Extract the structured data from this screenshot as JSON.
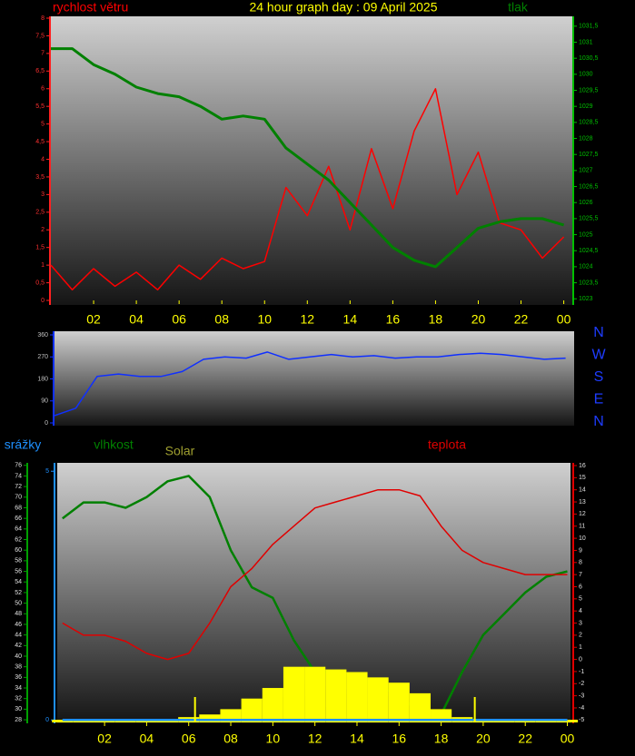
{
  "chart_data": [
    {
      "type": "line",
      "title": "24 hour graph day : 09 April 2025",
      "x": [
        0,
        1,
        2,
        3,
        4,
        5,
        6,
        7,
        8,
        9,
        10,
        11,
        12,
        13,
        14,
        15,
        16,
        17,
        18,
        19,
        20,
        21,
        22,
        23,
        24
      ],
      "xlim": [
        0,
        24.4
      ],
      "xticks": [
        {
          "value": 2,
          "label": "02"
        },
        {
          "value": 4,
          "label": "04"
        },
        {
          "value": 6,
          "label": "06"
        },
        {
          "value": 8,
          "label": "08"
        },
        10,
        12,
        14,
        16,
        18,
        20,
        22,
        {
          "value": 24,
          "label": "00"
        }
      ],
      "ylim": [
        0,
        8
      ],
      "yticks": [
        0,
        {
          "value": 0.5,
          "label": "0,5"
        },
        1,
        {
          "value": 1.5,
          "label": "1,5"
        },
        2,
        {
          "value": 2.5,
          "label": "2,5"
        },
        3,
        {
          "value": 3.5,
          "label": "3,5"
        },
        4,
        {
          "value": 4.5,
          "label": "4,5"
        },
        5,
        {
          "value": 5.5,
          "label": "5,5"
        },
        6,
        {
          "value": 6.5,
          "label": "6,5"
        },
        7,
        {
          "value": 7.5,
          "label": "7,5"
        },
        8
      ],
      "y2lim": [
        1022.95,
        1031.75
      ],
      "y2ticks": [
        1023,
        {
          "value": 1023.5,
          "label": "1023,5"
        },
        1024,
        {
          "value": 1024.5,
          "label": "1024,5"
        },
        1025,
        {
          "value": 1025.5,
          "label": "1025,5"
        },
        1026,
        {
          "value": 1026.5,
          "label": "1026,5"
        },
        1027,
        {
          "value": 1027.5,
          "label": "1027,5"
        },
        1028,
        {
          "value": 1028.5,
          "label": "1028,5"
        },
        1029,
        {
          "value": 1029.5,
          "label": "1029,5"
        },
        1030,
        {
          "value": 1030.5,
          "label": "1030,5"
        },
        1031,
        {
          "value": 1031.5,
          "label": "1031,5"
        }
      ],
      "series": [
        {
          "name": "rychlost větru",
          "color": "#ff0000",
          "values": [
            1.0,
            0.3,
            0.9,
            0.4,
            0.8,
            0.3,
            1.0,
            0.6,
            1.2,
            0.9,
            1.1,
            3.2,
            2.4,
            3.8,
            2.0,
            4.3,
            2.6,
            4.8,
            6.0,
            3.0,
            4.2,
            2.2,
            2.0,
            1.2,
            1.8
          ]
        },
        {
          "name": "tlak",
          "color": "#008000",
          "axis": "y2",
          "values": [
            1030.8,
            1030.8,
            1030.3,
            1030.0,
            1029.6,
            1029.4,
            1029.3,
            1029.0,
            1028.6,
            1028.7,
            1028.6,
            1027.7,
            1027.2,
            1026.7,
            1026.0,
            1025.3,
            1024.6,
            1024.2,
            1024.0,
            1024.6,
            1025.2,
            1025.4,
            1025.5,
            1025.5,
            1025.3
          ]
        }
      ]
    },
    {
      "type": "line",
      "x": [
        0,
        1,
        2,
        3,
        4,
        5,
        6,
        7,
        8,
        9,
        10,
        11,
        12,
        13,
        14,
        15,
        16,
        17,
        18,
        19,
        20,
        21,
        22,
        23,
        24
      ],
      "xlim": [
        0,
        24.4
      ],
      "ylim": [
        0,
        360
      ],
      "yticks": [
        0,
        90,
        180,
        270,
        360
      ],
      "compass": [
        "N",
        "W",
        "S",
        "E",
        "N"
      ],
      "series": [
        {
          "color": "#1030ff",
          "values": [
            30,
            60,
            190,
            200,
            190,
            190,
            210,
            260,
            270,
            265,
            290,
            260,
            270,
            280,
            270,
            275,
            265,
            270,
            270,
            280,
            285,
            280,
            270,
            260,
            265
          ]
        }
      ]
    },
    {
      "type": "line",
      "x": [
        0,
        1,
        2,
        3,
        4,
        5,
        6,
        7,
        8,
        9,
        10,
        11,
        12,
        13,
        14,
        15,
        16,
        17,
        18,
        19,
        20,
        21,
        22,
        23,
        24
      ],
      "xlim": [
        -0.25,
        24.15
      ],
      "xticks": [
        {
          "value": 2,
          "label": "02"
        },
        {
          "value": 4,
          "label": "04"
        },
        {
          "value": 6,
          "label": "06"
        },
        {
          "value": 8,
          "label": "08"
        },
        10,
        12,
        14,
        16,
        18,
        20,
        22,
        {
          "value": 24,
          "label": "00"
        }
      ],
      "ylim": [
        27.5,
        76.3
      ],
      "yticks": [
        28,
        30,
        32,
        34,
        36,
        38,
        40,
        42,
        44,
        46,
        48,
        50,
        52,
        54,
        56,
        58,
        60,
        62,
        64,
        66,
        68,
        70,
        72,
        74,
        76
      ],
      "y2lim": [
        -5.2,
        16.15
      ],
      "y2ticks": [
        -5,
        -4,
        -3,
        -2,
        -1,
        0,
        1,
        2,
        3,
        4,
        5,
        6,
        7,
        8,
        9,
        10,
        11,
        12,
        13,
        14,
        15,
        16
      ],
      "y3lim": [
        -0.05,
        5.15
      ],
      "y3ticks": [
        0,
        5
      ],
      "vlines": [
        6.3,
        19.6
      ],
      "series": [
        {
          "name": "vlhkost",
          "color": "#008000",
          "values": [
            66,
            69,
            69,
            68,
            70,
            73,
            74,
            70,
            60,
            53,
            51,
            43,
            37,
            37,
            36,
            34,
            33,
            29,
            29,
            37,
            44,
            48,
            52,
            55,
            56
          ]
        },
        {
          "name": "teplota",
          "color": "#e00000",
          "axis": "y2",
          "values": [
            3,
            2,
            2,
            1.5,
            0.5,
            0,
            0.5,
            3,
            6,
            7.5,
            9.5,
            11,
            12.5,
            13,
            13.5,
            14,
            14,
            13.5,
            11,
            9,
            8,
            7.5,
            7,
            7,
            7
          ]
        },
        {
          "name": "Solar",
          "color": "#ffff00",
          "label_color": "#a0a030",
          "kind": "bar",
          "values": [
            28,
            28,
            28,
            28,
            28,
            28,
            28.5,
            29,
            30,
            32,
            34,
            38,
            38,
            37.5,
            37,
            36,
            35,
            33,
            30,
            28.5,
            28,
            28,
            28,
            28,
            28
          ]
        },
        {
          "name": "srážky",
          "color": "#1e90ff",
          "axis": "y3",
          "values": [
            0,
            0,
            0,
            0,
            0,
            0,
            0,
            0,
            0,
            0,
            0,
            0,
            0,
            0,
            0,
            0,
            0,
            0,
            0,
            0,
            0,
            0,
            0,
            0,
            0
          ]
        }
      ]
    }
  ]
}
